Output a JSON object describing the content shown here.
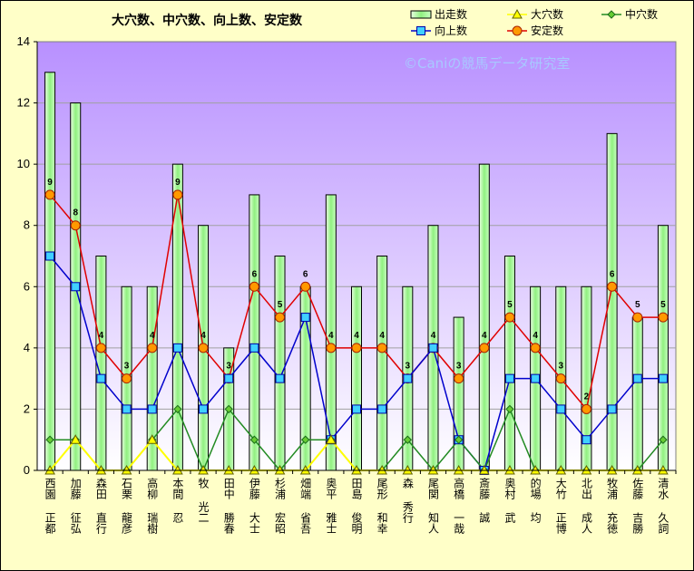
{
  "chart_data": {
    "type": "bar",
    "title": "大穴数、中穴数、向上数、安定数",
    "watermark": "©Caniの競馬データ研究室",
    "ylim": [
      0,
      14
    ],
    "yticks": [
      "0",
      "2",
      "4",
      "6",
      "8",
      "10",
      "12",
      "14"
    ],
    "categories": [
      "西園 正都",
      "加藤 征弘",
      "森田 直行",
      "石栗 龍彦",
      "高柳 瑞樹",
      "本間 忍",
      "牧 光二",
      "田中 勝春",
      "伊藤 大士",
      "杉浦 宏昭",
      "畑端 省吾",
      "奥平 雅士",
      "田島 俊明",
      "尾形 和幸",
      "森 秀行",
      "尾関 知人",
      "高橋 一哉",
      "斎藤 誠",
      "奥村 武",
      "的場 均",
      "大竹 正博",
      "北出 成人",
      "牧浦 充徳",
      "佐藤 吉勝",
      "清水 久詞"
    ],
    "series": [
      {
        "name": "出走数",
        "kind": "bar",
        "color": "#b8f8b0",
        "values": [
          13,
          12,
          7,
          6,
          6,
          10,
          8,
          4,
          9,
          7,
          6,
          9,
          6,
          7,
          6,
          8,
          5,
          10,
          7,
          6,
          6,
          6,
          11,
          5,
          8
        ]
      },
      {
        "name": "大穴数",
        "kind": "line",
        "color": "#ffff00",
        "values": [
          0,
          1,
          0,
          0,
          1,
          0,
          0,
          0,
          0,
          0,
          0,
          1,
          0,
          0,
          0,
          0,
          0,
          0,
          0,
          0,
          0,
          0,
          0,
          0,
          0
        ]
      },
      {
        "name": "中穴数",
        "kind": "line",
        "color": "#228b22",
        "values": [
          1,
          1,
          0,
          0,
          1,
          2,
          0,
          2,
          1,
          0,
          1,
          1,
          0,
          0,
          1,
          0,
          1,
          0,
          2,
          0,
          0,
          0,
          0,
          0,
          1
        ]
      },
      {
        "name": "向上数",
        "kind": "line",
        "color": "#0000cc",
        "values": [
          7,
          6,
          3,
          2,
          2,
          4,
          2,
          3,
          4,
          3,
          5,
          1,
          2,
          2,
          3,
          4,
          1,
          0,
          3,
          3,
          2,
          1,
          2,
          3,
          3
        ]
      },
      {
        "name": "安定数",
        "kind": "line",
        "color": "#e00000",
        "values": [
          9,
          8,
          4,
          3,
          4,
          9,
          4,
          3,
          6,
          5,
          6,
          4,
          4,
          4,
          3,
          4,
          3,
          4,
          5,
          4,
          3,
          2,
          6,
          5,
          5
        ]
      }
    ],
    "data_labels": [
      "9",
      "8",
      "4",
      "3",
      "4",
      "9",
      "4",
      "3",
      "6",
      "5",
      "6",
      "4",
      "4",
      "4",
      "3",
      "4",
      "3",
      "4",
      "5",
      "4",
      "3",
      "2",
      "6",
      "5",
      "5"
    ],
    "legend_position": "top-right",
    "grid": true
  }
}
